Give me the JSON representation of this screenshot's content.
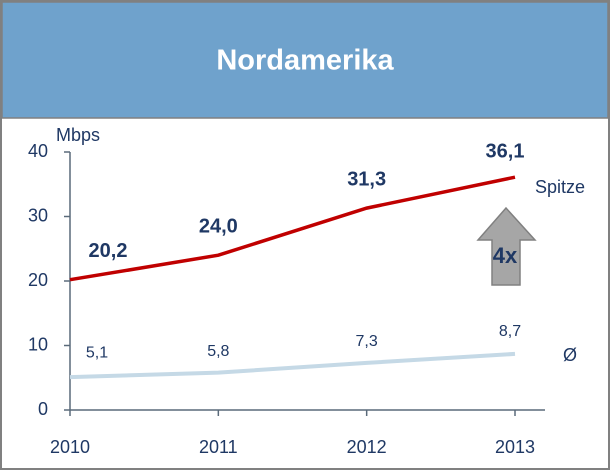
{
  "chart_data": {
    "type": "line",
    "title": "Nordamerika",
    "y_label": "Mbps",
    "categories": [
      "2010",
      "2011",
      "2012",
      "2013"
    ],
    "series": [
      {
        "name": "Spitze",
        "color": "#c00000",
        "values": [
          20.2,
          24.0,
          31.3,
          36.1
        ],
        "value_labels": [
          "20,2",
          "24,0",
          "31,3",
          "36,1"
        ]
      },
      {
        "name": "Ø",
        "color": "#c5d9e6",
        "values": [
          5.1,
          5.8,
          7.3,
          8.7
        ],
        "value_labels": [
          "5,1",
          "5,8",
          "7,3",
          "8,7"
        ]
      }
    ],
    "ylim": [
      0,
      40
    ],
    "yticks": [
      0,
      10,
      20,
      30,
      40
    ],
    "annotation": "4x"
  }
}
